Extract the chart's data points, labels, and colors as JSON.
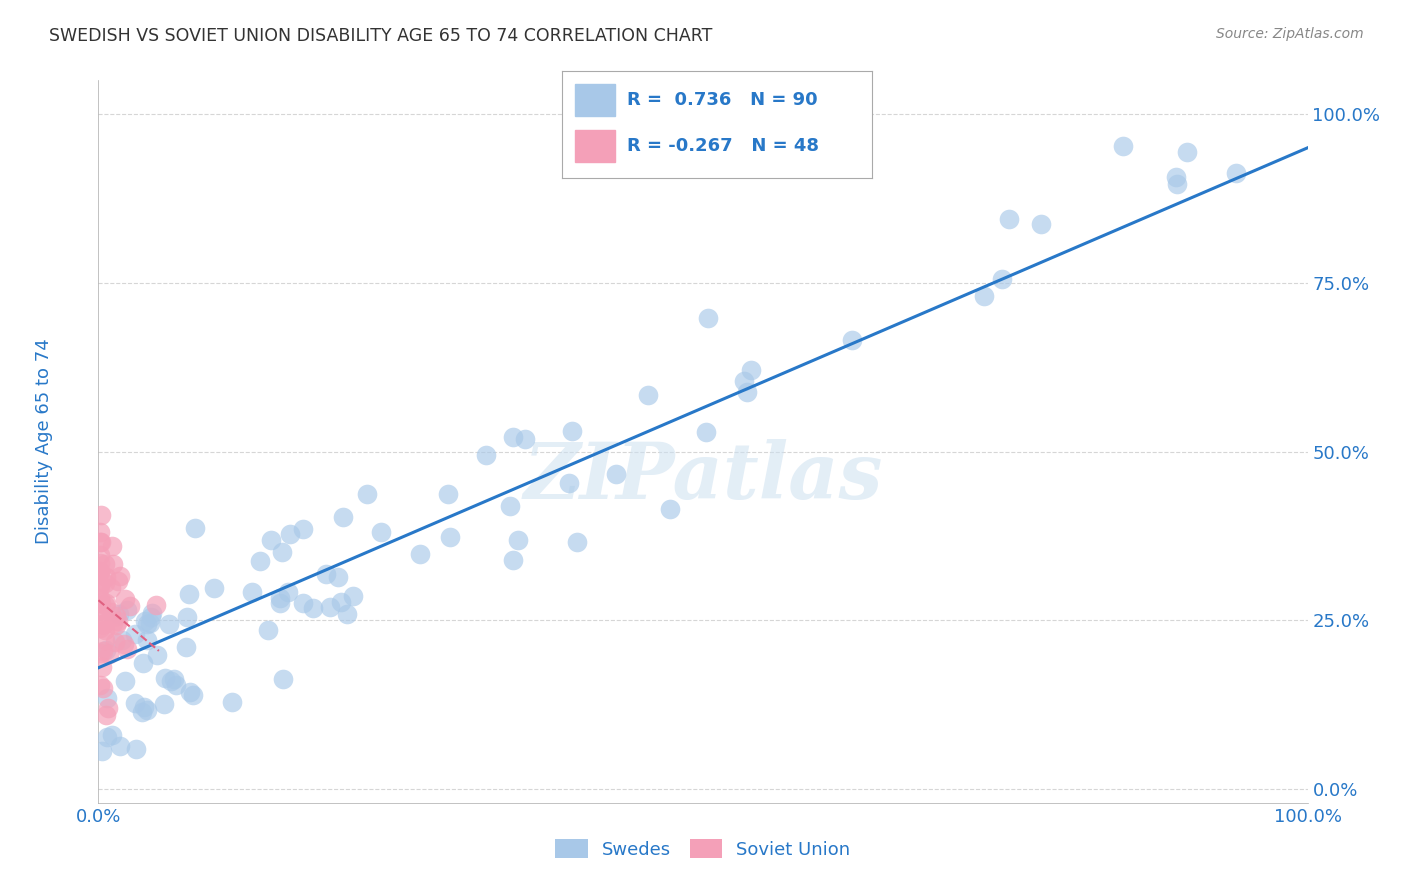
{
  "title": "SWEDISH VS SOVIET UNION DISABILITY AGE 65 TO 74 CORRELATION CHART",
  "source": "Source: ZipAtlas.com",
  "ylabel": "Disability Age 65 to 74",
  "watermark": "ZIPatlas",
  "swedes_color": "#a8c8e8",
  "soviet_color": "#f4a0b8",
  "swedes_line_color": "#2878c8",
  "soviet_line_color": "#e06080",
  "tick_color": "#2878c8",
  "background_color": "#ffffff",
  "grid_color": "#cccccc",
  "xlim": [
    0.0,
    1.0
  ],
  "ylim": [
    -0.02,
    1.05
  ],
  "xticks": [
    0.0,
    1.0
  ],
  "xticklabels": [
    "0.0%",
    "100.0%"
  ],
  "yticks": [
    0.0,
    0.25,
    0.5,
    0.75,
    1.0
  ],
  "yticklabels": [
    "0.0%",
    "25.0%",
    "50.0%",
    "75.0%",
    "100.0%"
  ]
}
